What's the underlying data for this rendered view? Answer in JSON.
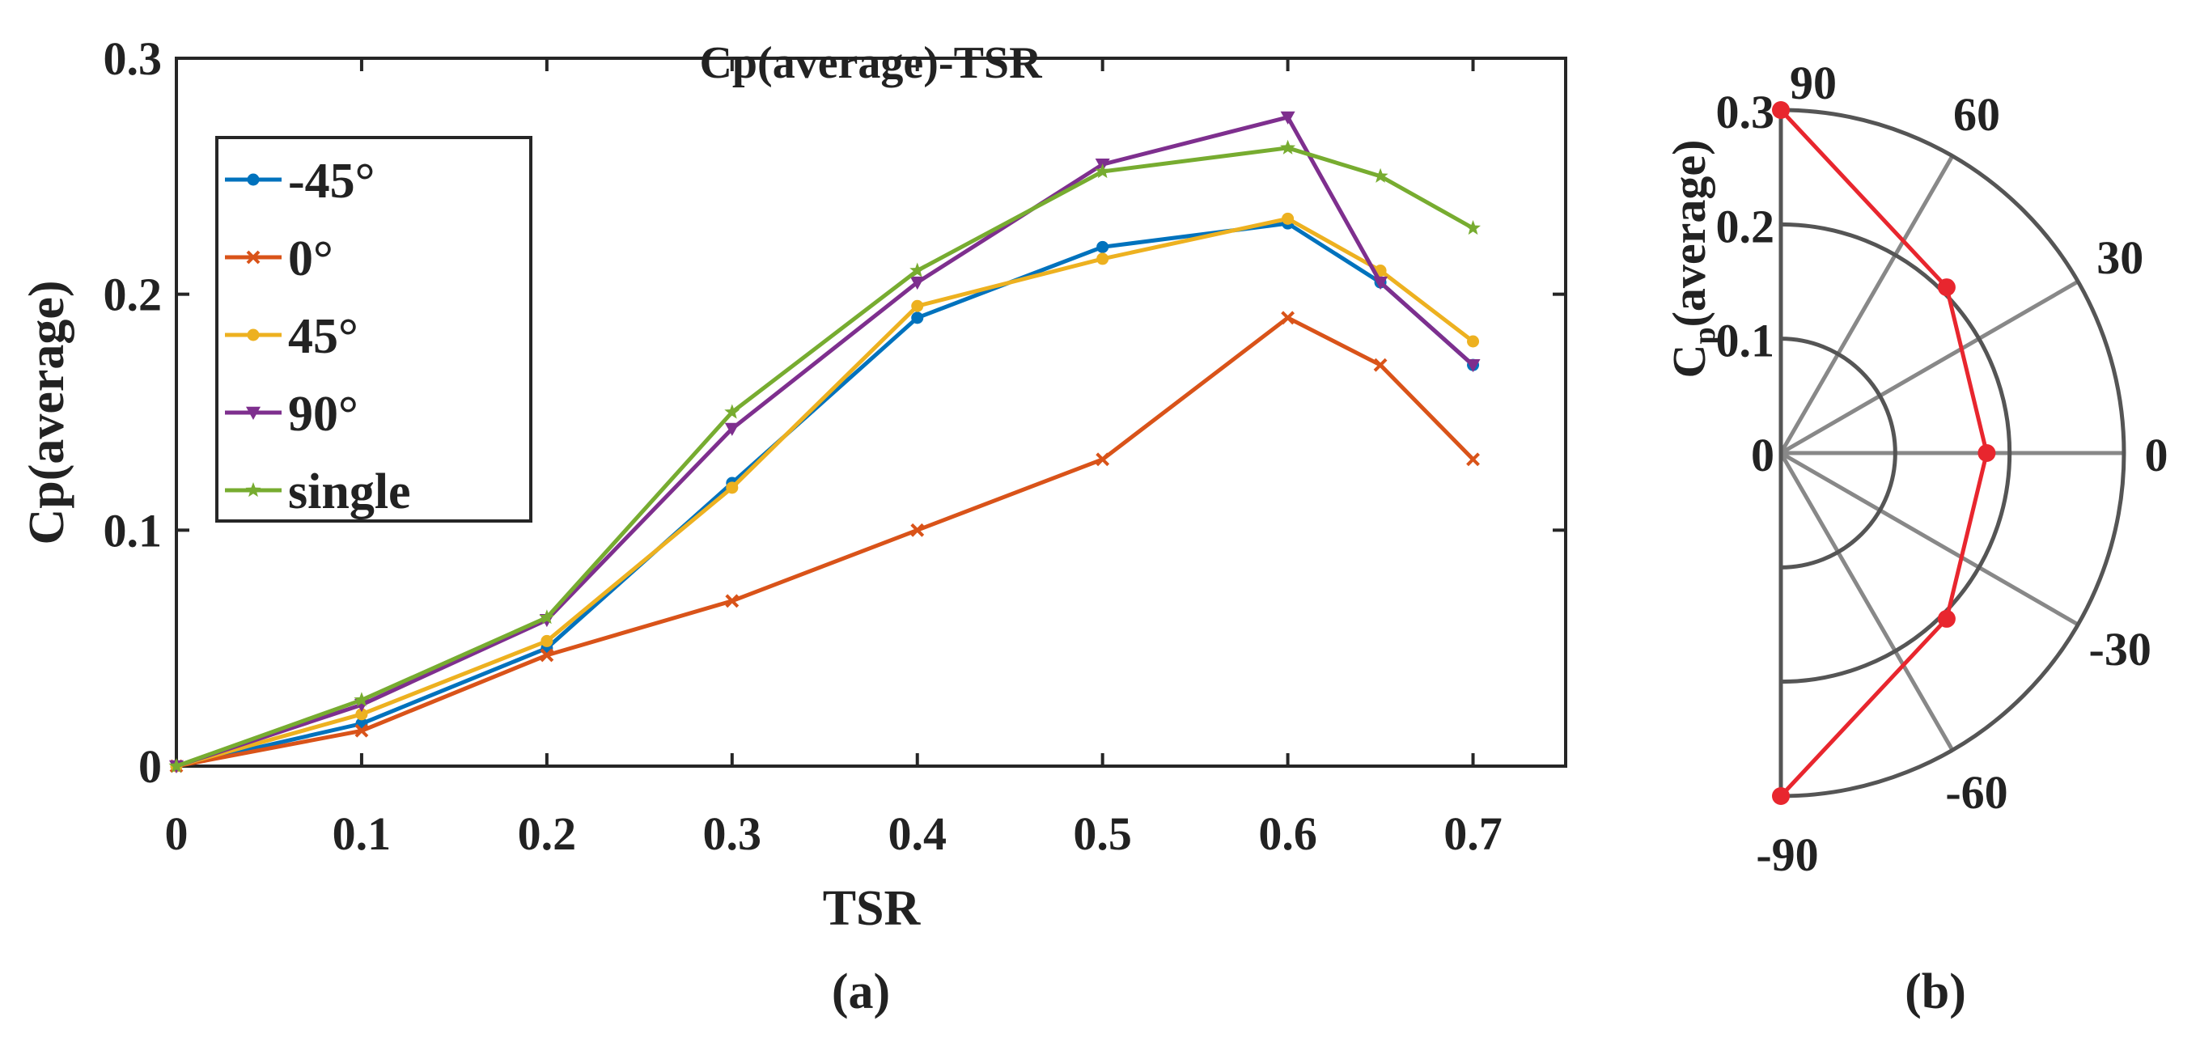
{
  "chart_data": [
    {
      "type": "line",
      "panel_label": "(a)",
      "title": "Cp(average)-TSR",
      "xlabel": "TSR",
      "ylabel": "Cp(average)",
      "xlim": [
        0,
        0.75
      ],
      "ylim": [
        0,
        0.3
      ],
      "xticks": [
        "0",
        "0.1",
        "0.2",
        "0.3",
        "0.4",
        "0.5",
        "0.6",
        "0.7"
      ],
      "yticks": [
        "0",
        "0.1",
        "0.2",
        "0.3"
      ],
      "grid": false,
      "legend_position": "top-left",
      "x": [
        0,
        0.1,
        0.2,
        0.3,
        0.4,
        0.5,
        0.6,
        0.65,
        0.7
      ],
      "series": [
        {
          "name": "-45°",
          "color": "#0072BD",
          "marker": "dot",
          "values": [
            0,
            0.018,
            0.05,
            0.12,
            0.19,
            0.22,
            0.23,
            0.205,
            0.17
          ]
        },
        {
          "name": "0°",
          "color": "#D95319",
          "marker": "x",
          "values": [
            0,
            0.015,
            0.047,
            0.07,
            0.1,
            0.13,
            0.19,
            0.17,
            0.13
          ]
        },
        {
          "name": "45°",
          "color": "#EDB120",
          "marker": "dot",
          "values": [
            0,
            0.022,
            0.053,
            0.118,
            0.195,
            0.215,
            0.232,
            0.21,
            0.18
          ]
        },
        {
          "name": "90°",
          "color": "#7E2F8E",
          "marker": "triangle-down",
          "values": [
            0,
            0.026,
            0.062,
            0.143,
            0.205,
            0.255,
            0.275,
            0.205,
            0.17
          ]
        },
        {
          "name": "single",
          "color": "#77AC30",
          "marker": "star",
          "values": [
            0,
            0.028,
            0.063,
            0.15,
            0.21,
            0.252,
            0.262,
            0.25,
            0.228
          ]
        }
      ]
    },
    {
      "type": "polar",
      "panel_label": "(b)",
      "rlabel": "Cp(average)",
      "rlabel_main": "C",
      "rlabel_sub": "p",
      "rlabel_rest": "(average)",
      "rlim": [
        0,
        0.3
      ],
      "rticks": [
        "0",
        "0.1",
        "0.2",
        "0.3"
      ],
      "angle_ticks": [
        "90",
        "60",
        "30",
        "0",
        "-30",
        "-60",
        "-90"
      ],
      "series": [
        {
          "name": "Cp(average)",
          "color": "#E8262E",
          "angles": [
            90,
            45,
            0,
            -45,
            -90
          ],
          "values": [
            0.3,
            0.205,
            0.18,
            0.205,
            0.3
          ]
        }
      ]
    }
  ]
}
